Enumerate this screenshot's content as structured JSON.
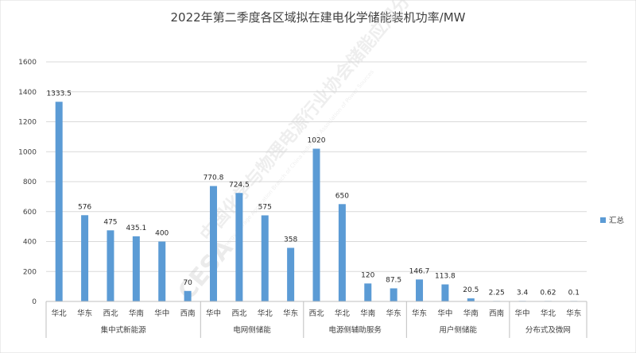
{
  "chart_data": {
    "type": "bar",
    "title": "2022年第二季度各区域拟在建电化学储能装机功率/MW",
    "xlabel": "",
    "ylabel": "",
    "ylim": [
      0,
      1600
    ],
    "yticks": [
      "0",
      "200",
      "400",
      "600",
      "800",
      "1000",
      "1200",
      "1400",
      "1600"
    ],
    "grid": true,
    "legend_position": "right",
    "color": "#5b9bd5",
    "groups": [
      {
        "name": "集中式新能源",
        "categories": [
          "华北",
          "华东",
          "西北",
          "华南",
          "华中",
          "西南"
        ],
        "values": [
          1333.5,
          576,
          475,
          435.1,
          400,
          70
        ],
        "labels": [
          "1333.5",
          "576",
          "475",
          "435.1",
          "400",
          "70"
        ]
      },
      {
        "name": "电网侧储能",
        "categories": [
          "华中",
          "西北",
          "华北",
          "华东"
        ],
        "values": [
          770.8,
          724.5,
          575,
          358
        ],
        "labels": [
          "770.8",
          "724.5",
          "575",
          "358"
        ]
      },
      {
        "name": "电源侧辅助服务",
        "categories": [
          "西北",
          "华北",
          "华南",
          "华东"
        ],
        "values": [
          1020,
          650,
          120,
          87.5
        ],
        "labels": [
          "1020",
          "650",
          "120",
          "87.5"
        ]
      },
      {
        "name": "用户侧储能",
        "categories": [
          "华东",
          "华中",
          "华南",
          "西南"
        ],
        "values": [
          146.7,
          113.8,
          20.5,
          2.25
        ],
        "labels": [
          "146.7",
          "113.8",
          "20.5",
          "2.25"
        ]
      },
      {
        "name": "分布式及微网",
        "categories": [
          "华中",
          "华北",
          "华东"
        ],
        "values": [
          3.4,
          0.62,
          0.1
        ],
        "labels": [
          "3.4",
          "0.62",
          "0.1"
        ]
      }
    ],
    "series": [
      {
        "name": "汇总"
      }
    ]
  },
  "watermark": {
    "text": "中国化学与物理电源行业协会储能应用分会",
    "subtext": "Energy Storage Application Branch of China Industrial Association of Power Sources",
    "logo": "CESA"
  }
}
